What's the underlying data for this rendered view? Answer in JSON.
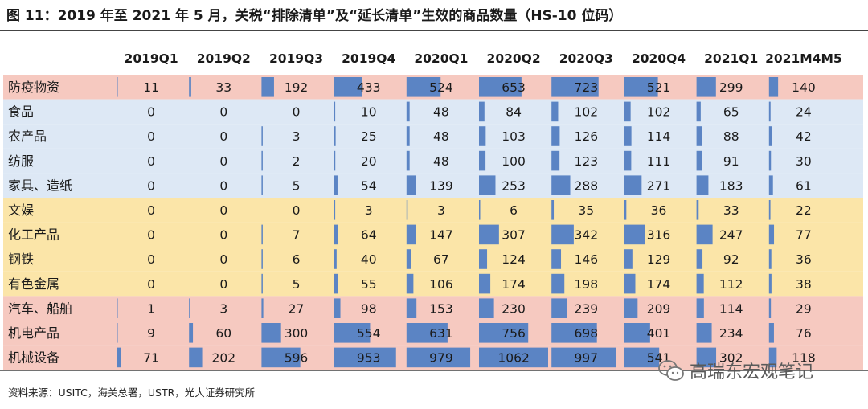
{
  "title": "图 11：2019 年至 2021 年 5 月，关税“排除清单”及“延长清单”生效的商品数量（HS-10 位码）",
  "source": "资料来源：USITC，海关总署，USTR，光大证券研究所",
  "watermark": "高瑞东宏观笔记",
  "colors": {
    "group_blue": "#dde8f5",
    "group_yellow": "#fbe5a8",
    "group_pink": "#f6c9c0",
    "bar": "#5b84c4"
  },
  "chart_data": {
    "type": "table",
    "columns": [
      "2019Q1",
      "2019Q2",
      "2019Q3",
      "2019Q4",
      "2020Q1",
      "2020Q2",
      "2020Q3",
      "2020Q4",
      "2021Q1",
      "2021M4M5"
    ],
    "rows": [
      {
        "label": "防疫物资",
        "group": "pink",
        "values": [
          11,
          33,
          192,
          433,
          524,
          653,
          723,
          521,
          299,
          140
        ]
      },
      {
        "label": "食品",
        "group": "blue",
        "values": [
          0,
          0,
          0,
          10,
          48,
          84,
          102,
          102,
          65,
          24
        ]
      },
      {
        "label": "农产品",
        "group": "blue",
        "values": [
          0,
          0,
          3,
          25,
          48,
          103,
          126,
          114,
          88,
          42
        ]
      },
      {
        "label": "纺服",
        "group": "blue",
        "values": [
          0,
          0,
          2,
          20,
          48,
          100,
          123,
          111,
          91,
          30
        ]
      },
      {
        "label": "家具、造纸",
        "group": "blue",
        "values": [
          0,
          0,
          5,
          54,
          139,
          253,
          288,
          271,
          183,
          61
        ]
      },
      {
        "label": "文娱",
        "group": "yellow",
        "values": [
          0,
          0,
          0,
          3,
          3,
          6,
          35,
          36,
          33,
          22
        ]
      },
      {
        "label": "化工产品",
        "group": "yellow",
        "values": [
          0,
          0,
          7,
          64,
          147,
          307,
          342,
          316,
          247,
          77
        ]
      },
      {
        "label": "钢铁",
        "group": "yellow",
        "values": [
          0,
          0,
          6,
          40,
          67,
          124,
          146,
          129,
          92,
          36
        ]
      },
      {
        "label": "有色金属",
        "group": "yellow",
        "values": [
          0,
          0,
          5,
          55,
          106,
          174,
          198,
          174,
          112,
          38
        ]
      },
      {
        "label": "汽车、船舶",
        "group": "pink",
        "values": [
          1,
          3,
          27,
          98,
          153,
          230,
          239,
          209,
          114,
          29
        ]
      },
      {
        "label": "机电产品",
        "group": "pink",
        "values": [
          9,
          60,
          300,
          554,
          631,
          756,
          698,
          401,
          234,
          76
        ]
      },
      {
        "label": "机械设备",
        "group": "pink",
        "values": [
          71,
          202,
          596,
          953,
          979,
          1062,
          997,
          541,
          302,
          118
        ]
      }
    ],
    "bar_max": 1062
  }
}
